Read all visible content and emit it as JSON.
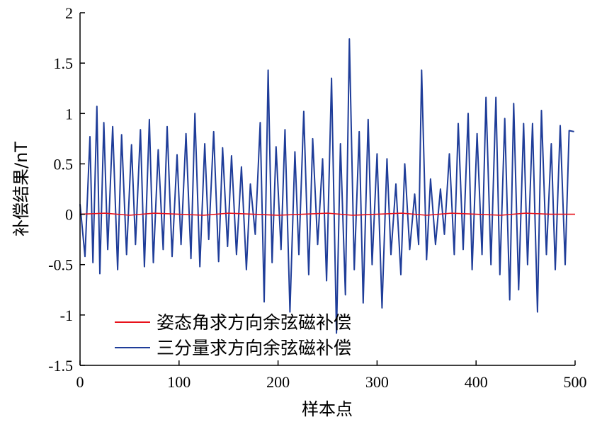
{
  "chart_data": {
    "type": "line",
    "xlabel": "样本点",
    "ylabel": "补偿结果/nT",
    "xlim": [
      0,
      500
    ],
    "ylim": [
      -1.5,
      2
    ],
    "x_ticks": [
      "0",
      "100",
      "200",
      "300",
      "400",
      "500"
    ],
    "y_ticks": [
      "2",
      "1.5",
      "1",
      "0.5",
      "0",
      "-0.5",
      "-1",
      "-1.5"
    ],
    "grid": false,
    "legend_position": "bottom-left",
    "series": [
      {
        "name": "姿态角求方向余弦磁补偿",
        "color": "#e8121b",
        "x": [
          0,
          25,
          50,
          75,
          100,
          125,
          150,
          175,
          200,
          225,
          250,
          275,
          300,
          325,
          350,
          375,
          400,
          425,
          450,
          475,
          500
        ],
        "y": [
          0.0,
          0.01,
          -0.01,
          0.01,
          0.0,
          -0.01,
          0.01,
          0.0,
          -0.01,
          0.0,
          0.01,
          -0.01,
          0.0,
          0.01,
          -0.01,
          0.01,
          0.0,
          -0.01,
          0.01,
          0.0,
          0.0
        ]
      },
      {
        "name": "三分量求方向余弦磁补偿",
        "color": "#1f3d99",
        "x": [
          0,
          5,
          10,
          13,
          17,
          20,
          24,
          28,
          33,
          38,
          42,
          47,
          52,
          56,
          61,
          65,
          70,
          74,
          79,
          84,
          88,
          93,
          98,
          102,
          107,
          112,
          116,
          121,
          126,
          130,
          135,
          140,
          144,
          149,
          153,
          158,
          163,
          168,
          172,
          177,
          182,
          186,
          190,
          194,
          198,
          203,
          207,
          212,
          217,
          221,
          226,
          231,
          235,
          240,
          245,
          249,
          254,
          259,
          263,
          268,
          272,
          277,
          282,
          286,
          291,
          295,
          300,
          305,
          310,
          314,
          319,
          324,
          328,
          333,
          338,
          342,
          345,
          350,
          354,
          359,
          364,
          368,
          373,
          378,
          382,
          387,
          392,
          396,
          401,
          406,
          410,
          415,
          420,
          424,
          429,
          434,
          438,
          443,
          448,
          452,
          457,
          462,
          466,
          471,
          476,
          480,
          485,
          490,
          494,
          499
        ],
        "y": [
          0.1,
          -0.42,
          0.77,
          -0.48,
          1.07,
          -0.59,
          0.91,
          -0.35,
          0.87,
          -0.55,
          0.79,
          -0.4,
          0.69,
          -0.3,
          0.84,
          -0.52,
          0.94,
          -0.48,
          0.64,
          -0.35,
          0.87,
          -0.42,
          0.59,
          -0.3,
          0.8,
          -0.44,
          1.0,
          -0.52,
          0.7,
          -0.25,
          0.82,
          -0.47,
          0.66,
          -0.32,
          0.58,
          -0.4,
          0.47,
          -0.55,
          0.3,
          -0.2,
          0.91,
          -0.87,
          1.43,
          -0.48,
          0.67,
          -0.35,
          0.84,
          -0.97,
          0.62,
          -0.4,
          1.02,
          -0.6,
          0.75,
          -0.3,
          0.55,
          -0.66,
          1.35,
          -1.18,
          0.7,
          -0.8,
          1.74,
          -0.55,
          0.82,
          -0.88,
          0.94,
          -0.5,
          0.6,
          -0.93,
          0.55,
          -0.4,
          0.3,
          -0.6,
          0.5,
          -0.35,
          0.2,
          -0.3,
          1.43,
          -0.45,
          0.35,
          -0.3,
          0.25,
          -0.2,
          0.6,
          -0.4,
          0.9,
          -0.35,
          1.0,
          -0.55,
          0.8,
          -0.4,
          1.16,
          -0.5,
          1.16,
          -0.6,
          0.95,
          -0.85,
          1.1,
          -0.75,
          0.9,
          -0.5,
          0.9,
          -0.97,
          1.03,
          -0.4,
          0.7,
          -0.55,
          0.88,
          -0.5,
          0.83,
          0.82
        ]
      }
    ]
  }
}
